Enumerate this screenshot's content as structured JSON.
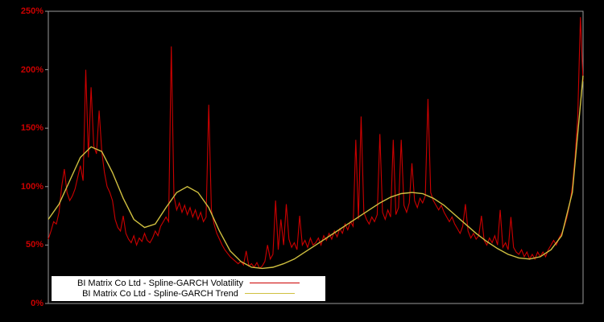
{
  "chart_data": {
    "type": "line",
    "title": "",
    "xlabel": "",
    "ylabel": "",
    "ylim": [
      0,
      250
    ],
    "x_range": [
      0,
      1
    ],
    "grid": false,
    "legend_position": "bottom-left",
    "background_color": "#000000",
    "frame_color": "#9a9a9a",
    "tick_label_color": "#cc0000",
    "y_tick_labels": [
      "250%",
      "200%",
      "150%",
      "100%",
      "50%",
      "0%"
    ],
    "y_tick_values": [
      250,
      200,
      150,
      100,
      50,
      0
    ],
    "series": [
      {
        "name": "BI Matrix Co Ltd - Spline-GARCH Volatility",
        "color": "#cc0000",
        "x_start": 0,
        "x_step": 0.005,
        "values": [
          55,
          62,
          70,
          68,
          78,
          100,
          115,
          95,
          88,
          92,
          98,
          108,
          118,
          105,
          200,
          125,
          185,
          135,
          128,
          165,
          130,
          112,
          100,
          95,
          88,
          72,
          65,
          62,
          75,
          60,
          55,
          52,
          58,
          50,
          56,
          53,
          60,
          54,
          52,
          56,
          62,
          58,
          66,
          70,
          74,
          70,
          220,
          92,
          80,
          86,
          78,
          84,
          76,
          82,
          74,
          80,
          72,
          78,
          70,
          74,
          170,
          80,
          68,
          60,
          55,
          50,
          46,
          43,
          40,
          38,
          36,
          34,
          36,
          33,
          45,
          32,
          34,
          31,
          35,
          30,
          32,
          36,
          50,
          38,
          42,
          88,
          46,
          72,
          50,
          85,
          55,
          48,
          52,
          46,
          75,
          50,
          54,
          48,
          56,
          50,
          52,
          56,
          50,
          58,
          54,
          60,
          55,
          62,
          57,
          64,
          60,
          68,
          63,
          70,
          66,
          140,
          72,
          160,
          78,
          72,
          68,
          74,
          70,
          76,
          145,
          78,
          72,
          80,
          74,
          140,
          76,
          82,
          140,
          84,
          78,
          86,
          120,
          88,
          82,
          90,
          86,
          92,
          175,
          95,
          88,
          84,
          80,
          84,
          78,
          74,
          70,
          74,
          68,
          64,
          60,
          66,
          85,
          62,
          56,
          60,
          55,
          58,
          75,
          54,
          50,
          56,
          52,
          58,
          50,
          80,
          48,
          52,
          46,
          74,
          48,
          44,
          42,
          46,
          40,
          44,
          38,
          42,
          38,
          44,
          40,
          44,
          40,
          46,
          50,
          54,
          50,
          56,
          60,
          66,
          74,
          85,
          100,
          125,
          160,
          245,
          190
        ]
      },
      {
        "name": "BI Matrix Co Ltd - Spline-GARCH Trend",
        "color": "#d0c040",
        "x_start": 0,
        "x_step": 0.02,
        "values": [
          72,
          85,
          105,
          125,
          134,
          130,
          112,
          90,
          72,
          65,
          68,
          82,
          95,
          100,
          95,
          82,
          62,
          45,
          36,
          31,
          30,
          31,
          34,
          38,
          44,
          50,
          56,
          62,
          68,
          74,
          80,
          86,
          91,
          94,
          95,
          94,
          90,
          84,
          76,
          68,
          60,
          53,
          47,
          42,
          39,
          38,
          40,
          46,
          58,
          95,
          195
        ]
      }
    ]
  },
  "legend": {
    "entries": [
      {
        "label": "BI Matrix Co Ltd - Spline-GARCH Volatility",
        "color": "#cc0000"
      },
      {
        "label": "BI Matrix Co Ltd - Spline-GARCH Trend",
        "color": "#d0c040"
      }
    ]
  }
}
